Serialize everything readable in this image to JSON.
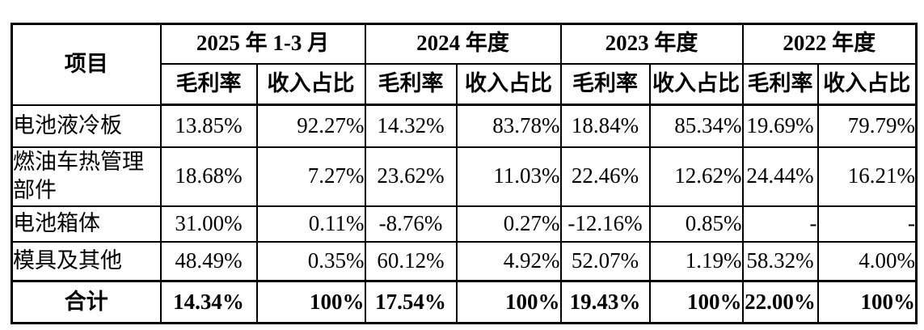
{
  "table": {
    "corner_header": "项目",
    "period_headers": [
      "2025 年 1-3 月",
      "2024 年度",
      "2023 年度",
      "2022 年度"
    ],
    "metric_headers": [
      "毛利率",
      "收入占比",
      "毛利率",
      "收入占比",
      "毛利率",
      "收入占比",
      "毛利率",
      "收入占比"
    ],
    "rows": [
      {
        "label": "电池液冷板",
        "values": [
          "13.85%",
          "92.27%",
          "14.32%",
          "83.78%",
          "18.84%",
          "85.34%",
          "19.69%",
          "79.79%"
        ]
      },
      {
        "label": "燃油车热管理\n部件",
        "values": [
          "18.68%",
          "7.27%",
          "23.62%",
          "11.03%",
          "22.46%",
          "12.62%",
          "24.44%",
          "16.21%"
        ]
      },
      {
        "label": "电池箱体",
        "values": [
          "31.00%",
          "0.11%",
          "-8.76%",
          "0.27%",
          "-12.16%",
          "0.85%",
          "-",
          "-"
        ]
      },
      {
        "label": "模具及其他",
        "values": [
          "48.49%",
          "0.35%",
          "60.12%",
          "4.92%",
          "52.07%",
          "1.19%",
          "58.32%",
          "4.00%"
        ]
      }
    ],
    "total_row": {
      "label": "合计",
      "values": [
        "14.34%",
        "100%",
        "17.54%",
        "100%",
        "19.43%",
        "100%",
        "22.00%",
        "100%"
      ]
    }
  },
  "colors": {
    "border": "#000000",
    "text": "#000000",
    "background": "#ffffff"
  }
}
